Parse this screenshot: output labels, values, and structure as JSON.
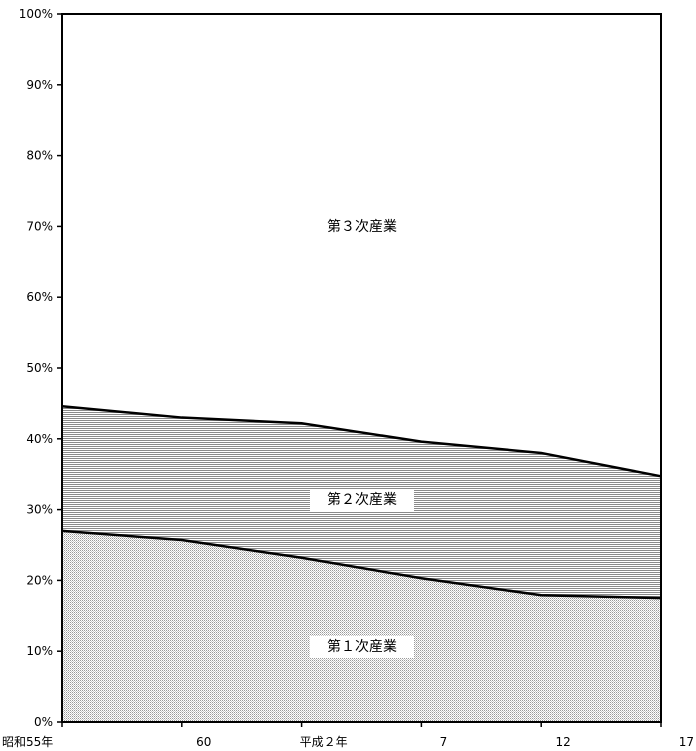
{
  "chart_data": {
    "type": "area",
    "stacked": true,
    "x": [
      "昭和55年",
      "60",
      "平成２年",
      "7",
      "12",
      "17"
    ],
    "series": [
      {
        "name": "第１次産業",
        "values": [
          27.0,
          25.7,
          23.2,
          20.3,
          17.9,
          17.5
        ]
      },
      {
        "name": "第２次産業",
        "values": [
          17.6,
          17.3,
          19.0,
          19.3,
          20.1,
          17.2
        ]
      },
      {
        "name": "第３次産業",
        "values": [
          55.4,
          57.0,
          57.8,
          60.4,
          62.0,
          65.3
        ]
      }
    ],
    "y_ticks": [
      "0%",
      "10%",
      "20%",
      "30%",
      "40%",
      "50%",
      "60%",
      "70%",
      "80%",
      "90%",
      "100%"
    ],
    "ylim": [
      0,
      100
    ],
    "grid": false,
    "fills": {
      "series1": "#d2d2d2",
      "series2": "#bcbcbc",
      "series3": "#ffffff"
    }
  }
}
